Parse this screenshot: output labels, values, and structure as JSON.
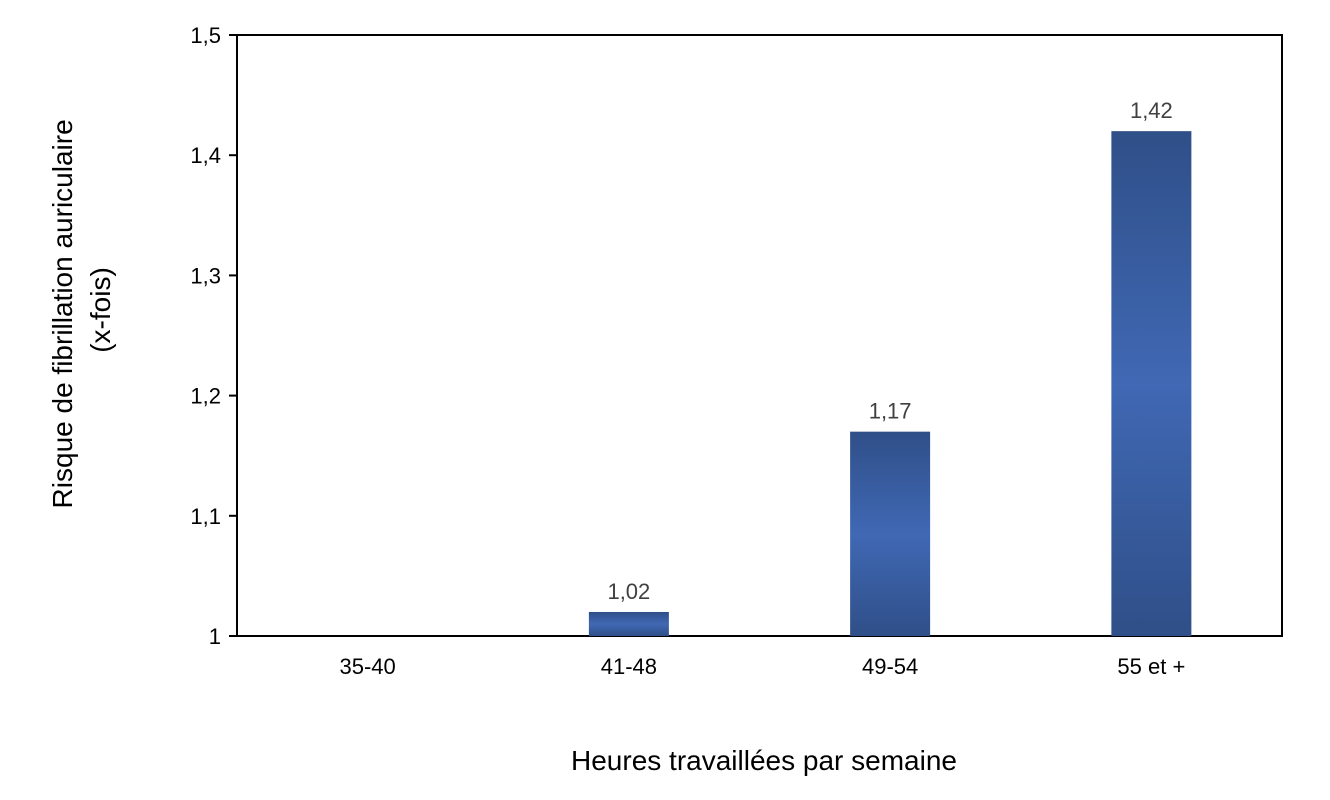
{
  "chart_data": {
    "type": "bar",
    "title": "",
    "categories": [
      "35-40",
      "41-48",
      "49-54",
      "55 et +"
    ],
    "values": [
      1.0,
      1.02,
      1.17,
      1.42
    ],
    "data_labels": [
      "",
      "1,02",
      "1,17",
      "1,42"
    ],
    "xlabel": "Heures travaillées par semaine",
    "ylabel_lines": [
      "Risque de fibrillation auriculaire",
      "(x-fois)"
    ],
    "ylim": [
      1,
      1.5
    ],
    "yticks": [
      1,
      1.1,
      1.2,
      1.3,
      1.4,
      1.5
    ],
    "ytick_labels": [
      "1",
      "1,1",
      "1,2",
      "1,3",
      "1,4",
      "1,5"
    ],
    "grid": false,
    "legend": "none",
    "colors": {
      "bar_edge": "#2f4f88",
      "bar_center": "#4068b4",
      "axis": "#000000"
    }
  }
}
